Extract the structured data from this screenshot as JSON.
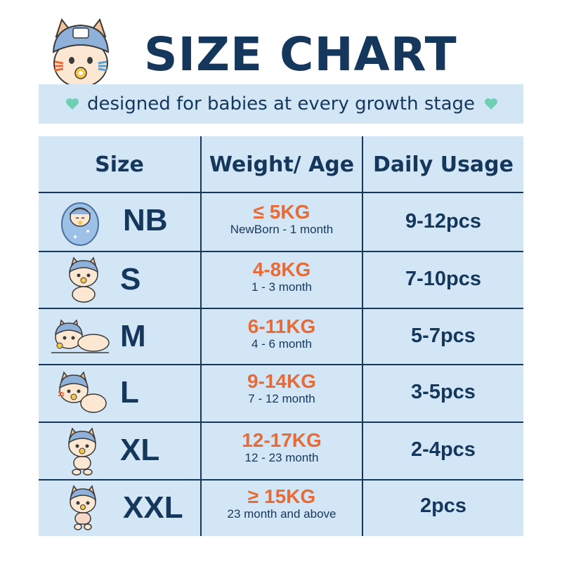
{
  "header": {
    "title": "SIZE CHART",
    "subtitle": "designed for babies at every growth stage"
  },
  "table": {
    "columns": [
      "Size",
      "Weight/ Age",
      "Daily Usage"
    ],
    "rows": [
      {
        "size": "NB",
        "weight": "≤ 5KG",
        "age": "NewBorn - 1 month",
        "usage": "9-12pcs",
        "illustration": "swaddled-baby-icon"
      },
      {
        "size": "S",
        "weight": "4-8KG",
        "age": "1 - 3 month",
        "usage": "7-10pcs",
        "illustration": "sitting-baby-cat-icon"
      },
      {
        "size": "M",
        "weight": "6-11KG",
        "age": "4 - 6 month",
        "usage": "5-7pcs",
        "illustration": "lying-baby-cat-icon"
      },
      {
        "size": "L",
        "weight": "9-14KG",
        "age": "7 - 12 month",
        "usage": "3-5pcs",
        "illustration": "crawling-baby-cat-icon"
      },
      {
        "size": "XL",
        "weight": "12-17KG",
        "age": "12 - 23 month",
        "usage": "2-4pcs",
        "illustration": "standing-baby-cat-icon"
      },
      {
        "size": "XXL",
        "weight": "≥ 15KG",
        "age": "23 month and above",
        "usage": "2pcs",
        "illustration": "walking-baby-cat-icon"
      }
    ]
  },
  "colors": {
    "navy": "#16375c",
    "orange": "#e86a36",
    "panel": "#d3e6f6",
    "heart": "#6fcfb3"
  }
}
